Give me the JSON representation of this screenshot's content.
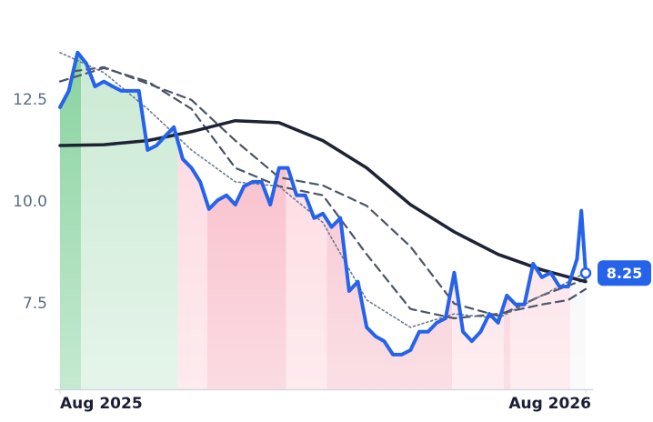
{
  "chart_data": {
    "type": "line",
    "xlim": [
      0,
      12
    ],
    "xticks": [
      {
        "value": 0,
        "label": "Aug 2025"
      },
      {
        "value": 12,
        "label": "Aug 2026"
      }
    ],
    "ylim": [
      5.4,
      14.95
    ],
    "yticks": [
      7.5,
      {
        "value": 10,
        "label": "10.0"
      },
      12.5
    ],
    "regions": [
      {
        "x0": 0,
        "x1": 0.48,
        "color": "#7fcf98"
      },
      {
        "x0": 0.48,
        "x1": 2.69,
        "color": "#c6e8d0"
      },
      {
        "x0": 2.69,
        "x1": 3.36,
        "color": "#fcd3db"
      },
      {
        "x0": 3.36,
        "x1": 5.16,
        "color": "#f7afbe"
      },
      {
        "x0": 5.16,
        "x1": 6.09,
        "color": "#fcd3db"
      },
      {
        "x0": 6.09,
        "x1": 8.95,
        "color": "#f6b8c6"
      },
      {
        "x0": 8.95,
        "x1": 10.13,
        "color": "#fcd8df"
      },
      {
        "x0": 10.13,
        "x1": 10.28,
        "color": "#f6bcc8"
      },
      {
        "x0": 10.28,
        "x1": 11.65,
        "color": "#fcd8df"
      },
      {
        "x0": 11.65,
        "x1": 12,
        "color": "#f2f4f7"
      }
    ],
    "series": [
      {
        "color": "#4b5568",
        "style": "dashed",
        "x": [
          0,
          1,
          2,
          3,
          4,
          5,
          6,
          7,
          8,
          9,
          10,
          11,
          11.6,
          12
        ],
        "values": [
          12.95,
          13.28,
          12.95,
          12.28,
          10.83,
          10.38,
          10.16,
          8.71,
          7.37,
          7.14,
          7.25,
          7.48,
          7.59,
          7.86
        ]
      },
      {
        "color": "#4b5568",
        "style": "dashed",
        "x": [
          0.3,
          1,
          2,
          3,
          4,
          5,
          6,
          7,
          8,
          9,
          10,
          11,
          12
        ],
        "values": [
          13.2,
          13.3,
          12.9,
          12.5,
          11.5,
          10.6,
          10.4,
          9.9,
          8.9,
          7.5,
          7.2,
          7.7,
          8.1
        ]
      },
      {
        "color": "#6b7a90",
        "style": "dotted",
        "x": [
          0,
          1,
          2,
          3,
          4,
          5,
          6,
          7,
          8,
          9,
          10,
          11,
          12
        ],
        "values": [
          13.66,
          13.17,
          12.28,
          11.27,
          10.49,
          10.38,
          9.49,
          7.59,
          6.92,
          7.25,
          7.14,
          7.7,
          8.26
        ]
      },
      {
        "color": "#1e2235",
        "style": "solid",
        "width": 3.5,
        "x": [
          0,
          1,
          2,
          3,
          4,
          5,
          6,
          7,
          8,
          9,
          10,
          11,
          12
        ],
        "values": [
          11.38,
          11.4,
          11.5,
          11.72,
          11.99,
          11.94,
          11.5,
          10.83,
          9.93,
          9.26,
          8.71,
          8.33,
          8.04
        ]
      },
      {
        "color": "#2563eb",
        "style": "solid",
        "width": 4,
        "x": [
          0,
          0.2,
          0.4,
          0.6,
          0.8,
          1,
          1.2,
          1.4,
          1.6,
          1.8,
          2,
          2.2,
          2.4,
          2.6,
          2.8,
          3,
          3.2,
          3.4,
          3.6,
          3.8,
          4,
          4.2,
          4.4,
          4.6,
          4.8,
          5,
          5.2,
          5.4,
          5.6,
          5.8,
          6,
          6.2,
          6.4,
          6.6,
          6.8,
          7,
          7.2,
          7.4,
          7.6,
          7.8,
          8,
          8.2,
          8.4,
          8.6,
          8.8,
          9,
          9.2,
          9.4,
          9.6,
          9.8,
          10,
          10.2,
          10.4,
          10.6,
          10.8,
          11,
          11.2,
          11.4,
          11.6,
          11.8,
          11.9,
          12
        ],
        "values": [
          12.32,
          12.72,
          13.66,
          13.39,
          12.83,
          12.95,
          12.83,
          12.72,
          12.72,
          12.72,
          11.27,
          11.38,
          11.61,
          11.83,
          11.05,
          10.83,
          10.49,
          9.82,
          10.04,
          10.16,
          9.93,
          10.38,
          10.49,
          10.49,
          9.93,
          10.83,
          10.83,
          10.16,
          10.16,
          9.6,
          9.71,
          9.38,
          9.6,
          7.81,
          8.04,
          6.92,
          6.7,
          6.58,
          6.25,
          6.25,
          6.36,
          6.81,
          6.81,
          7.03,
          7.14,
          8.26,
          6.81,
          6.58,
          6.81,
          7.25,
          7.03,
          7.7,
          7.48,
          7.48,
          8.48,
          8.15,
          8.26,
          7.92,
          7.92,
          8.59,
          9.78,
          8.25
        ]
      }
    ]
  }
}
